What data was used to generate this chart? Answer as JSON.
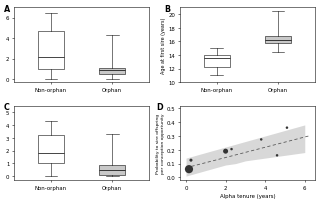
{
  "panel_A": {
    "label": "A",
    "categories": [
      "Non-orphan",
      "Orphan"
    ],
    "colors": [
      "white",
      "#c8c8c8"
    ],
    "non_orphan": {
      "median": 2.2,
      "q1": 1.0,
      "q3": 4.7,
      "whislo": 0.0,
      "whishi": 6.5
    },
    "orphan": {
      "median": 0.85,
      "q1": 0.5,
      "q3": 1.1,
      "whislo": 0.0,
      "whishi": 4.3
    },
    "ylim": [
      -0.3,
      7.0
    ],
    "yticks": [
      0,
      2,
      4,
      6
    ]
  },
  "panel_B": {
    "label": "B",
    "ylabel": "Age at first sire (years)",
    "categories": [
      "Non-orphan",
      "Orphan"
    ],
    "colors": [
      "white",
      "#c8c8c8"
    ],
    "non_orphan": {
      "median": 13.5,
      "q1": 12.2,
      "q3": 14.0,
      "whislo": 11.0,
      "whishi": 15.0
    },
    "orphan": {
      "median": 16.2,
      "q1": 15.8,
      "q3": 16.8,
      "whislo": 14.5,
      "whishi": 20.5
    },
    "ylim": [
      10,
      21
    ],
    "yticks": [
      10,
      12,
      14,
      16,
      18,
      20
    ]
  },
  "panel_C": {
    "label": "C",
    "categories": [
      "Non-orphan",
      "Orphan"
    ],
    "colors": [
      "white",
      "#c8c8c8"
    ],
    "non_orphan": {
      "median": 1.8,
      "q1": 1.0,
      "q3": 3.2,
      "whislo": 0.0,
      "whishi": 4.3
    },
    "orphan": {
      "median": 0.5,
      "q1": 0.1,
      "q3": 0.9,
      "whislo": 0.0,
      "whishi": 3.3
    },
    "ylim": [
      -0.3,
      5.5
    ],
    "yticks": [
      0,
      1,
      2,
      3,
      4,
      5
    ]
  },
  "panel_D": {
    "label": "D",
    "xlabel": "Alpha tenure (years)",
    "ylabel": "Probability to sire offspring\nper conception opportunity",
    "xlim": [
      -0.3,
      6.5
    ],
    "ylim": [
      -0.02,
      0.52
    ],
    "yticks": [
      0.0,
      0.1,
      0.2,
      0.3,
      0.4,
      0.5
    ],
    "xticks": [
      0,
      2,
      4,
      6
    ],
    "scatter_x": [
      0.15,
      0.25,
      2.0,
      2.3,
      3.8,
      4.6,
      5.1
    ],
    "scatter_y": [
      0.06,
      0.125,
      0.19,
      0.205,
      0.275,
      0.16,
      0.36
    ],
    "scatter_sizes": [
      85,
      12,
      32,
      8,
      8,
      8,
      8
    ],
    "line_x": [
      0.0,
      6.2
    ],
    "line_y": [
      0.07,
      0.3
    ],
    "ci_x": [
      0.0,
      0.5,
      1.0,
      1.5,
      2.0,
      2.5,
      3.0,
      3.5,
      4.0,
      4.5,
      5.0,
      5.5,
      6.0
    ],
    "ci_upper": [
      0.14,
      0.16,
      0.18,
      0.2,
      0.22,
      0.24,
      0.26,
      0.28,
      0.3,
      0.32,
      0.34,
      0.36,
      0.38
    ],
    "ci_lower": [
      0.01,
      0.03,
      0.05,
      0.07,
      0.09,
      0.1,
      0.12,
      0.13,
      0.14,
      0.15,
      0.16,
      0.17,
      0.18
    ]
  },
  "fig_width": 5.0,
  "fig_height": 3.2,
  "fig_dpi": 64
}
